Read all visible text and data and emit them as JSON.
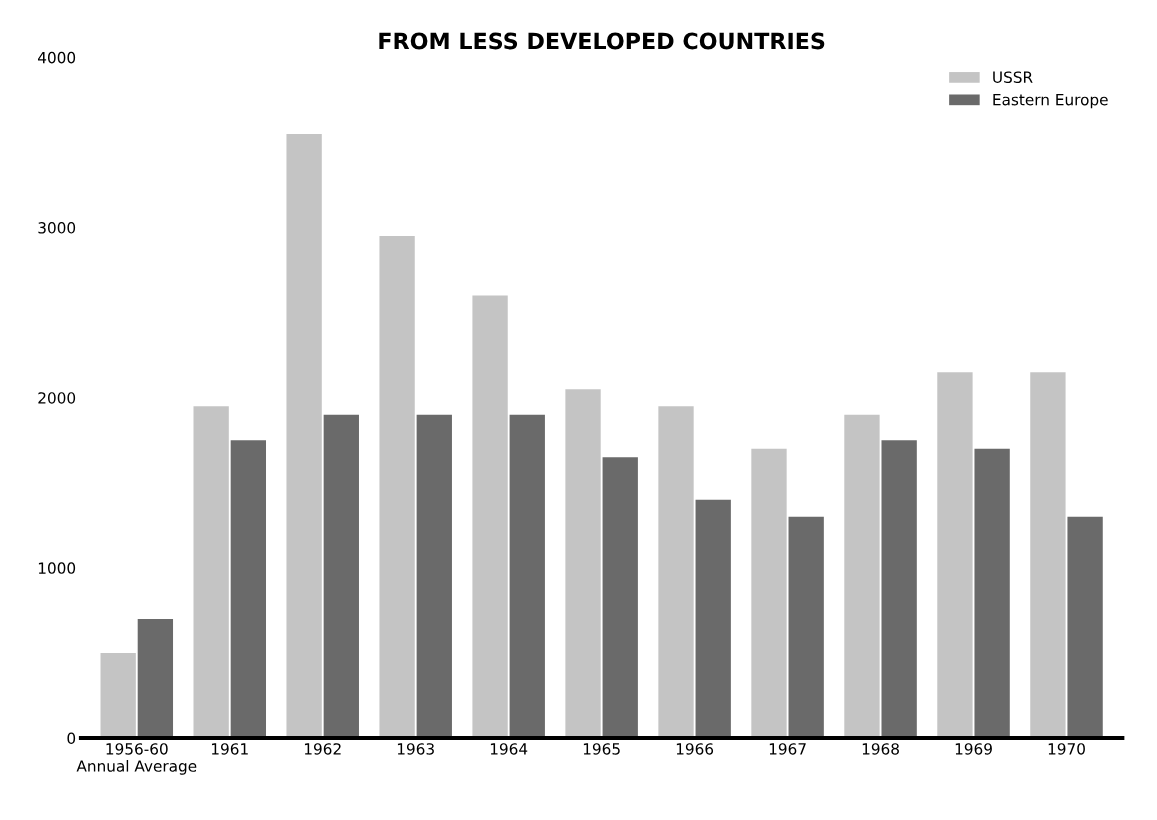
{
  "chart_data": {
    "type": "bar",
    "title": "FROM LESS DEVELOPED COUNTRIES",
    "categories": [
      "1956-60\nAnnual Average",
      "1961",
      "1962",
      "1963",
      "1964",
      "1965",
      "1966",
      "1967",
      "1968",
      "1969",
      "1970"
    ],
    "series": [
      {
        "name": "USSR",
        "color": "#c4c4c4",
        "values": [
          500,
          1950,
          3550,
          2950,
          2600,
          2050,
          1950,
          1700,
          1900,
          2150,
          2150
        ]
      },
      {
        "name": "Eastern Europe",
        "color": "#6a6a6a",
        "values": [
          700,
          1750,
          1900,
          1900,
          1900,
          1650,
          1400,
          1300,
          1750,
          1700,
          1300
        ]
      }
    ],
    "ylim": [
      0,
      4000
    ],
    "yticks": [
      0,
      1000,
      2000,
      3000,
      4000
    ],
    "grid": false,
    "legend": "top right"
  }
}
